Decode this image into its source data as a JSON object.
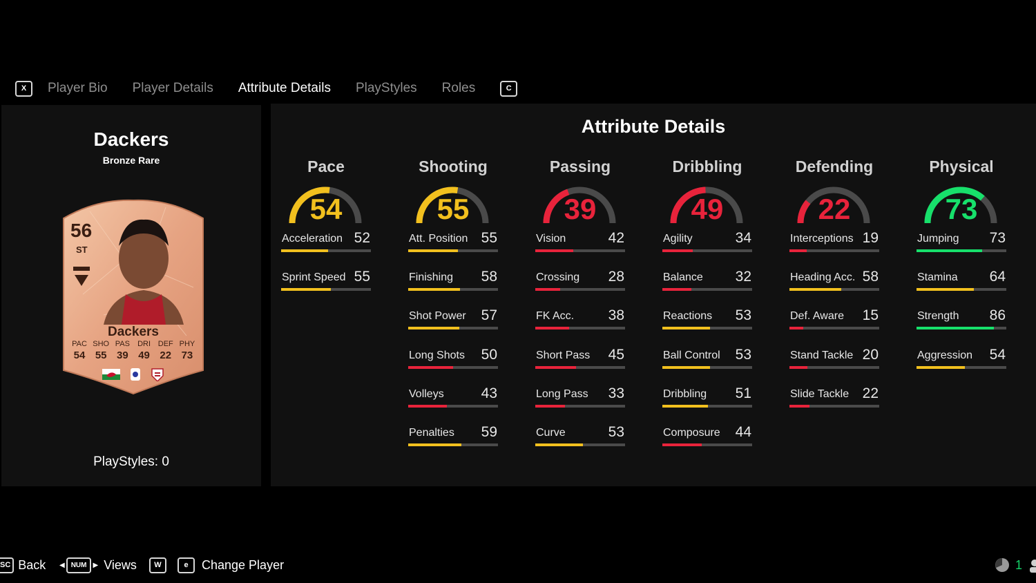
{
  "tabs": {
    "prev_key": "X",
    "next_key": "C",
    "items": [
      {
        "label": "Player Bio",
        "active": false
      },
      {
        "label": "Player Details",
        "active": false
      },
      {
        "label": "Attribute Details",
        "active": true
      },
      {
        "label": "PlayStyles",
        "active": false
      },
      {
        "label": "Roles",
        "active": false
      }
    ]
  },
  "player": {
    "name": "Dackers",
    "rarity": "Bronze Rare",
    "playstyles": "PlayStyles: 0",
    "card": {
      "rating": "56",
      "position": "ST",
      "name": "Dackers",
      "stats": [
        {
          "label": "PAC",
          "value": "54"
        },
        {
          "label": "SHO",
          "value": "55"
        },
        {
          "label": "PAS",
          "value": "39"
        },
        {
          "label": "DRI",
          "value": "49"
        },
        {
          "label": "DEF",
          "value": "22"
        },
        {
          "label": "PHY",
          "value": "73"
        }
      ],
      "badges": [
        "wales-flag-icon",
        "league-badge-icon",
        "club-badge-icon"
      ]
    }
  },
  "attributes": {
    "title": "Attribute Details",
    "colors": {
      "yellow": "#f2c01e",
      "red": "#e8233b",
      "green": "#17e06b",
      "track": "#4a4a4a"
    },
    "categories": [
      {
        "name": "Pace",
        "value": 54,
        "color": "yellow",
        "stats": [
          {
            "name": "Acceleration",
            "value": 52,
            "color": "yellow"
          },
          {
            "name": "Sprint Speed",
            "value": 55,
            "color": "yellow"
          }
        ]
      },
      {
        "name": "Shooting",
        "value": 55,
        "color": "yellow",
        "stats": [
          {
            "name": "Att. Position",
            "value": 55,
            "color": "yellow"
          },
          {
            "name": "Finishing",
            "value": 58,
            "color": "yellow"
          },
          {
            "name": "Shot Power",
            "value": 57,
            "color": "yellow"
          },
          {
            "name": "Long Shots",
            "value": 50,
            "color": "red"
          },
          {
            "name": "Volleys",
            "value": 43,
            "color": "red"
          },
          {
            "name": "Penalties",
            "value": 59,
            "color": "yellow"
          }
        ]
      },
      {
        "name": "Passing",
        "value": 39,
        "color": "red",
        "stats": [
          {
            "name": "Vision",
            "value": 42,
            "color": "red"
          },
          {
            "name": "Crossing",
            "value": 28,
            "color": "red"
          },
          {
            "name": "FK Acc.",
            "value": 38,
            "color": "red"
          },
          {
            "name": "Short Pass",
            "value": 45,
            "color": "red"
          },
          {
            "name": "Long Pass",
            "value": 33,
            "color": "red"
          },
          {
            "name": "Curve",
            "value": 53,
            "color": "yellow"
          }
        ]
      },
      {
        "name": "Dribbling",
        "value": 49,
        "color": "red",
        "stats": [
          {
            "name": "Agility",
            "value": 34,
            "color": "red"
          },
          {
            "name": "Balance",
            "value": 32,
            "color": "red"
          },
          {
            "name": "Reactions",
            "value": 53,
            "color": "yellow"
          },
          {
            "name": "Ball Control",
            "value": 53,
            "color": "yellow"
          },
          {
            "name": "Dribbling",
            "value": 51,
            "color": "yellow"
          },
          {
            "name": "Composure",
            "value": 44,
            "color": "red"
          }
        ]
      },
      {
        "name": "Defending",
        "value": 22,
        "color": "red",
        "stats": [
          {
            "name": "Interceptions",
            "value": 19,
            "color": "red"
          },
          {
            "name": "Heading Acc.",
            "value": 58,
            "color": "yellow"
          },
          {
            "name": "Def. Aware",
            "value": 15,
            "color": "red"
          },
          {
            "name": "Stand Tackle",
            "value": 20,
            "color": "red"
          },
          {
            "name": "Slide Tackle",
            "value": 22,
            "color": "red"
          }
        ]
      },
      {
        "name": "Physical",
        "value": 73,
        "color": "green",
        "stats": [
          {
            "name": "Jumping",
            "value": 73,
            "color": "green"
          },
          {
            "name": "Stamina",
            "value": 64,
            "color": "yellow"
          },
          {
            "name": "Strength",
            "value": 86,
            "color": "green"
          },
          {
            "name": "Aggression",
            "value": 54,
            "color": "yellow"
          }
        ]
      }
    ]
  },
  "footer": {
    "back_key": "SC",
    "back_label": "Back",
    "views_key": "NUM",
    "views_label": "Views",
    "w_key": "W",
    "change_key": "e",
    "change_label": "Change Player",
    "status_count": "1"
  }
}
